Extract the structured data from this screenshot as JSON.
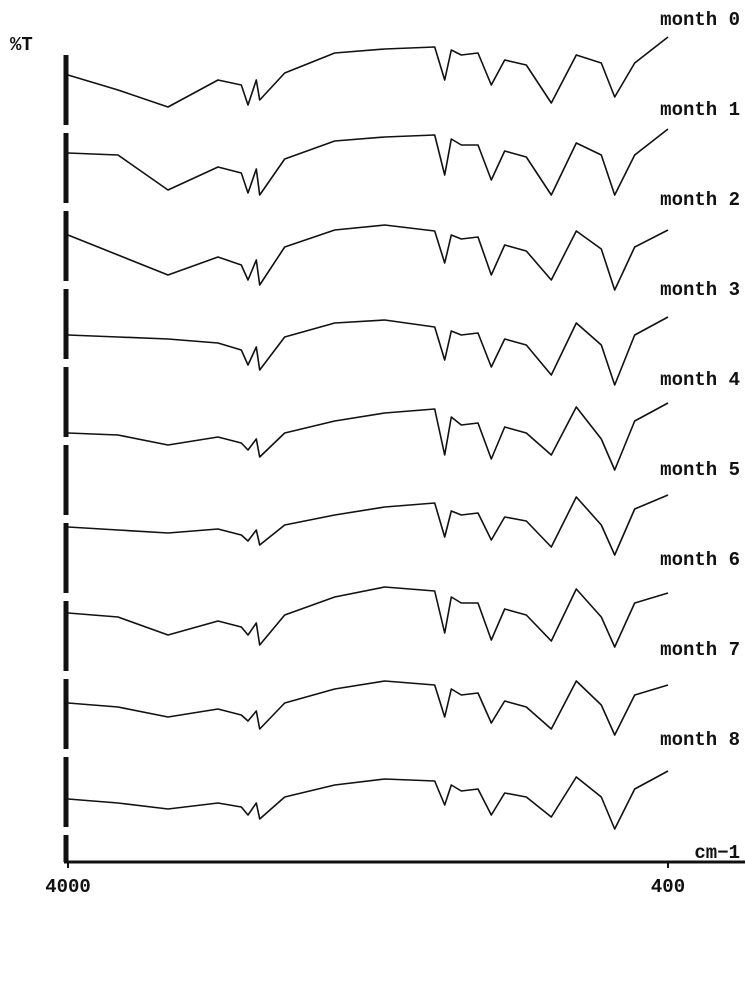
{
  "chart_data": {
    "type": "line",
    "y_label": "%T",
    "x_label": "cm−1",
    "xlim": [
      4000,
      400
    ],
    "xticks": [
      4000,
      400
    ],
    "ylim": [
      0,
      100
    ],
    "x": [
      4000,
      3700,
      3400,
      3100,
      2960,
      2920,
      2870,
      2850,
      2700,
      2400,
      2100,
      1800,
      1740,
      1700,
      1640,
      1540,
      1460,
      1380,
      1250,
      1100,
      950,
      800,
      720,
      600,
      400
    ],
    "series": [
      {
        "name": "month 0",
        "color": "#111111",
        "values": [
          60,
          45,
          28,
          55,
          50,
          30,
          55,
          35,
          62,
          82,
          86,
          88,
          55,
          85,
          80,
          82,
          50,
          75,
          70,
          32,
          80,
          72,
          38,
          72,
          98
        ]
      },
      {
        "name": "month 1",
        "color": "#111111",
        "values": [
          72,
          70,
          35,
          58,
          52,
          32,
          56,
          30,
          66,
          84,
          88,
          90,
          50,
          86,
          80,
          80,
          45,
          74,
          68,
          30,
          82,
          70,
          30,
          70,
          96
        ]
      },
      {
        "name": "month 2",
        "color": "#111111",
        "values": [
          80,
          60,
          40,
          58,
          50,
          35,
          55,
          30,
          68,
          85,
          90,
          84,
          52,
          80,
          76,
          78,
          40,
          70,
          64,
          35,
          84,
          66,
          25,
          68,
          85
        ]
      },
      {
        "name": "month 3",
        "color": "#111111",
        "values": [
          70,
          68,
          66,
          62,
          55,
          40,
          58,
          35,
          68,
          82,
          85,
          78,
          45,
          74,
          70,
          72,
          38,
          66,
          60,
          30,
          82,
          60,
          20,
          70,
          88
        ]
      },
      {
        "name": "month 4",
        "color": "#111111",
        "values": [
          62,
          60,
          50,
          58,
          52,
          45,
          56,
          38,
          62,
          74,
          82,
          86,
          40,
          78,
          70,
          72,
          36,
          68,
          62,
          40,
          88,
          56,
          25,
          74,
          92
        ]
      },
      {
        "name": "month 5",
        "color": "#111111",
        "values": [
          58,
          55,
          52,
          56,
          50,
          44,
          55,
          40,
          60,
          70,
          78,
          82,
          48,
          74,
          70,
          72,
          45,
          68,
          64,
          38,
          88,
          60,
          30,
          76,
          90
        ]
      },
      {
        "name": "month 6",
        "color": "#111111",
        "values": [
          62,
          58,
          40,
          54,
          48,
          40,
          52,
          30,
          60,
          78,
          88,
          84,
          42,
          78,
          72,
          72,
          35,
          66,
          60,
          34,
          86,
          58,
          28,
          72,
          82
        ]
      },
      {
        "name": "month 7",
        "color": "#111111",
        "values": [
          62,
          58,
          48,
          56,
          50,
          44,
          54,
          36,
          62,
          76,
          84,
          80,
          48,
          76,
          70,
          72,
          42,
          64,
          58,
          36,
          84,
          60,
          30,
          70,
          80
        ]
      },
      {
        "name": "month 8",
        "color": "#111111",
        "values": [
          56,
          52,
          46,
          52,
          48,
          40,
          52,
          36,
          58,
          70,
          76,
          74,
          50,
          70,
          64,
          66,
          40,
          62,
          58,
          38,
          78,
          58,
          26,
          66,
          84
        ]
      }
    ]
  }
}
